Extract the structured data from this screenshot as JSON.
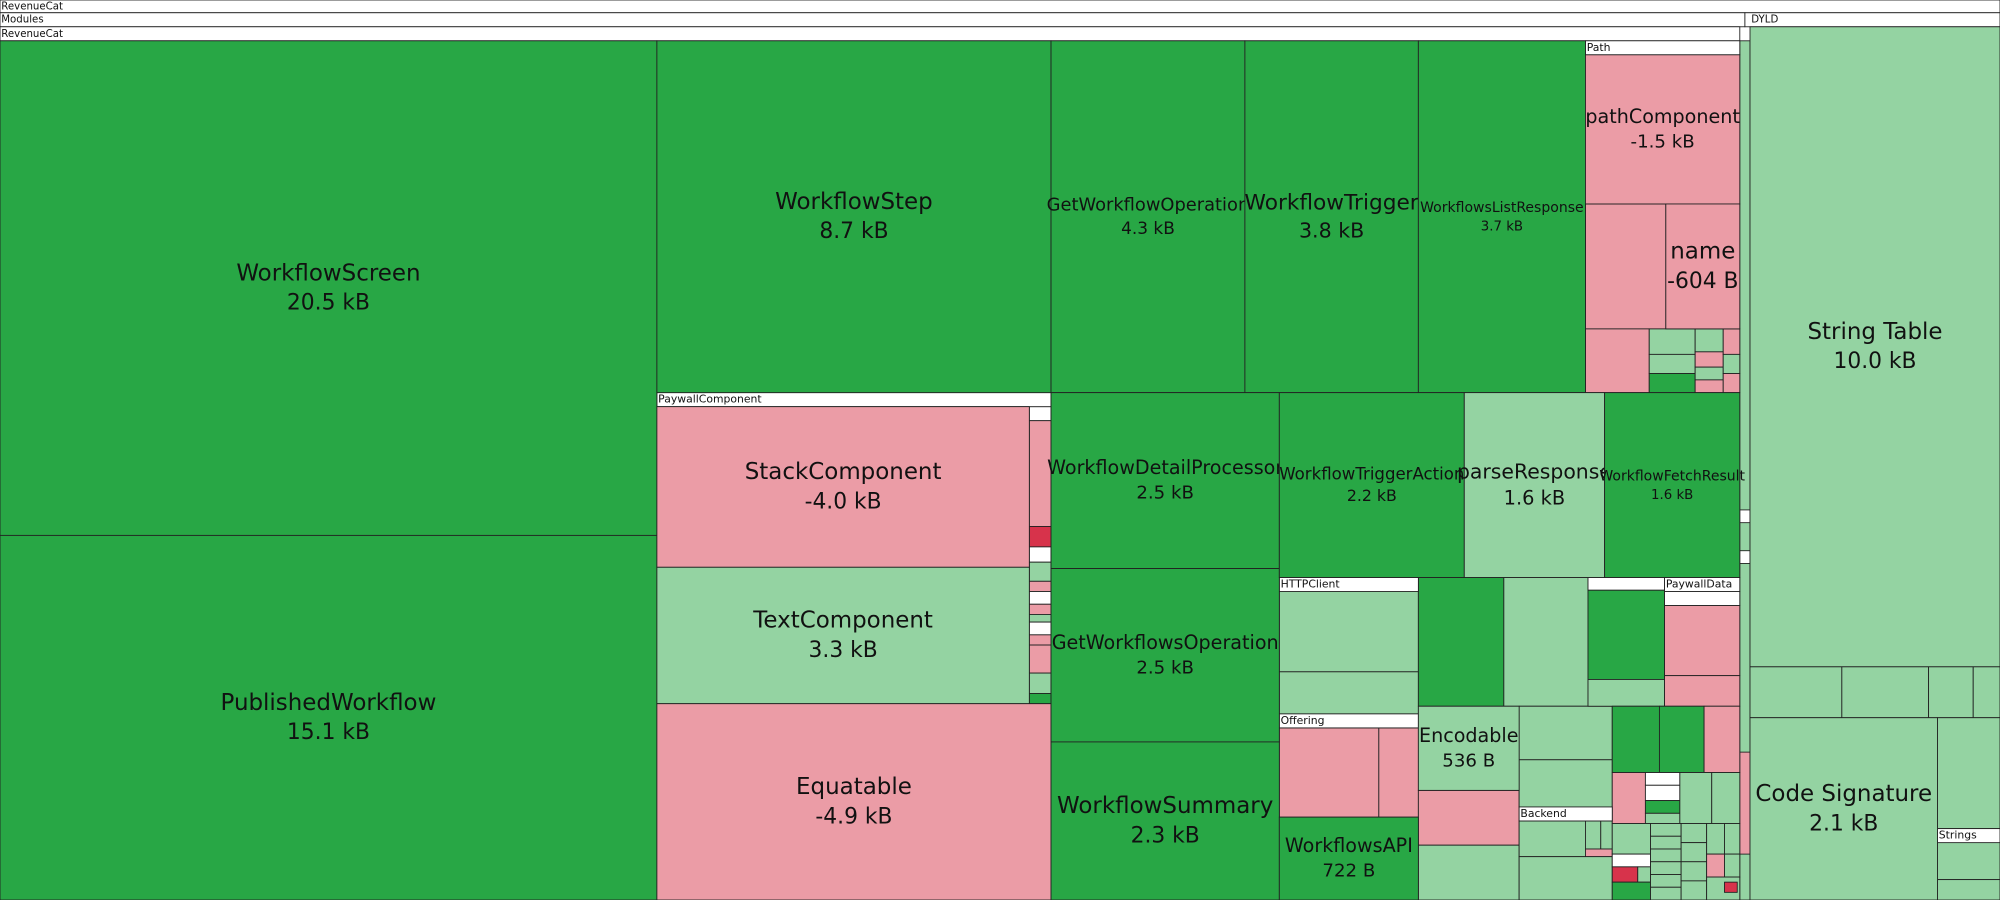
{
  "headers": {
    "root": "RevenueCat",
    "modules": "Modules",
    "module": "RevenueCat",
    "dyld": "DYLD"
  },
  "groups": [
    "Path",
    "PaywallComponent",
    "HTTPClient",
    "Offering",
    "Backend",
    "PaywallData",
    "Strings"
  ],
  "nodes": [
    {
      "label": "WorkflowScreen",
      "size": "20.5 kB"
    },
    {
      "label": "PublishedWorkflow",
      "size": "15.1 kB"
    },
    {
      "label": "WorkflowStep",
      "size": "8.7 kB"
    },
    {
      "label": "GetWorkflowOperation",
      "size": "4.3 kB"
    },
    {
      "label": "WorkflowTrigger",
      "size": "3.8 kB"
    },
    {
      "label": "WorkflowsListResponse",
      "size": "3.7 kB"
    },
    {
      "label": "pathComponent",
      "size": "-1.5 kB"
    },
    {
      "label": "name",
      "size": "-604 B"
    },
    {
      "label": "StackComponent",
      "size": "-4.0 kB"
    },
    {
      "label": "TextComponent",
      "size": "3.3 kB"
    },
    {
      "label": "Equatable",
      "size": "-4.9 kB"
    },
    {
      "label": "WorkflowDetailProcessor",
      "size": "2.5 kB"
    },
    {
      "label": "GetWorkflowsOperation",
      "size": "2.5 kB"
    },
    {
      "label": "WorkflowSummary",
      "size": "2.3 kB"
    },
    {
      "label": "WorkflowTriggerAction",
      "size": "2.2 kB"
    },
    {
      "label": "parseResponse",
      "size": "1.6 kB"
    },
    {
      "label": "WorkflowFetchResult",
      "size": "1.6 kB"
    },
    {
      "label": "Encodable",
      "size": "536 B"
    },
    {
      "label": "WorkflowsAPI",
      "size": "722 B"
    },
    {
      "label": "String Table",
      "size": "10.0 kB"
    },
    {
      "label": "Code Signature",
      "size": "2.1 kB"
    }
  ]
}
